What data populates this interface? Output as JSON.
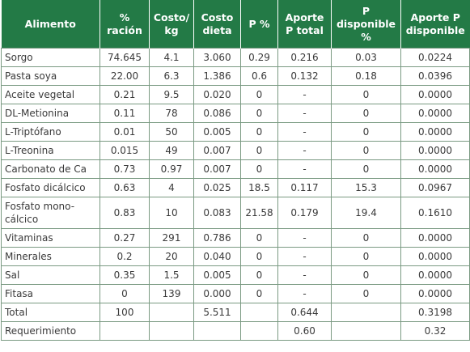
{
  "headers": [
    "Alimento",
    "% ración",
    "Costo/ kg",
    "Costo dieta",
    "P %",
    "Aporte P total",
    "P disponible %",
    "Aporte P disponible"
  ],
  "rows": [
    [
      "Sorgo",
      "74.645",
      "4.1",
      "3.060",
      "0.29",
      "0.216",
      "0.03",
      "0.0224"
    ],
    [
      "Pasta soya",
      "22.00",
      "6.3",
      "1.386",
      "0.6",
      "0.132",
      "0.18",
      "0.0396"
    ],
    [
      "Aceite vegetal",
      "0.21",
      "9.5",
      "0.020",
      "0",
      "-",
      "0",
      "0.0000"
    ],
    [
      "DL-Metionina",
      "0.11",
      "78",
      "0.086",
      "0",
      "-",
      "0",
      "0.0000"
    ],
    [
      "L-Triptófano",
      "0.01",
      "50",
      "0.005",
      "0",
      "-",
      "0",
      "0.0000"
    ],
    [
      "L-Treonina",
      "0.015",
      "49",
      "0.007",
      "0",
      "-",
      "0",
      "0.0000"
    ],
    [
      "Carbonato de Ca",
      "0.73",
      "0.97",
      "0.007",
      "0",
      "-",
      "0",
      "0.0000"
    ],
    [
      "Fosfato dicálcico",
      "0.63",
      "4",
      "0.025",
      "18.5",
      "0.117",
      "15.3",
      "0.0967"
    ],
    [
      "Fosfato mono-cálcico",
      "0.83",
      "10",
      "0.083",
      "21.58",
      "0.179",
      "19.4",
      "0.1610"
    ],
    [
      "Vitaminas",
      "0.27",
      "291",
      "0.786",
      "0",
      "-",
      "0",
      "0.0000"
    ],
    [
      "Minerales",
      "0.2",
      "20",
      "0.040",
      "0",
      "-",
      "0",
      "0.0000"
    ],
    [
      "Sal",
      "0.35",
      "1.5",
      "0.005",
      "0",
      "-",
      "0",
      "0.0000"
    ],
    [
      "Fitasa",
      "0",
      "139",
      "0.000",
      "0",
      "-",
      "0",
      "0.0000"
    ],
    [
      "Total",
      "100",
      "",
      "5.511",
      "",
      "0.644",
      "",
      "0.3198"
    ],
    [
      "Requerimiento",
      "",
      "",
      "",
      "",
      "0.60",
      "",
      "0.32"
    ]
  ],
  "colors": {
    "header_bg": "#237a46",
    "header_text": "#ffffff",
    "cell_border": "#7a9a82",
    "cell_text": "#3a3a3a"
  }
}
